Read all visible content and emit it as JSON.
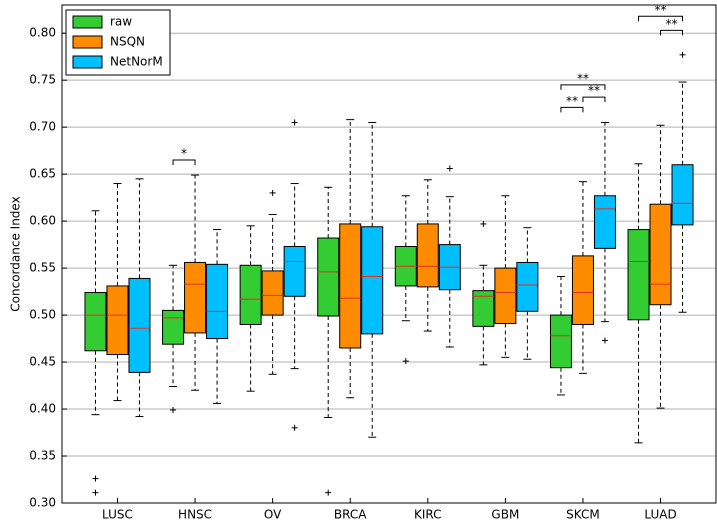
{
  "chart_data": {
    "type": "box",
    "ylabel": "Concordance Index",
    "categories": [
      "LUSC",
      "HNSC",
      "OV",
      "BRCA",
      "KIRC",
      "GBM",
      "SKCM",
      "LUAD"
    ],
    "ylim": [
      0.3,
      0.83
    ],
    "yticks": [
      {
        "value": 0.3,
        "label": "0.30"
      },
      {
        "value": 0.35,
        "label": "0.35"
      },
      {
        "value": 0.4,
        "label": "0.40"
      },
      {
        "value": 0.45,
        "label": "0.45"
      },
      {
        "value": 0.5,
        "label": "0.50"
      },
      {
        "value": 0.55,
        "label": "0.55"
      },
      {
        "value": 0.6,
        "label": "0.60"
      },
      {
        "value": 0.65,
        "label": "0.65"
      },
      {
        "value": 0.7,
        "label": "0.70"
      },
      {
        "value": 0.75,
        "label": "0.75"
      },
      {
        "value": 0.8,
        "label": "0.80"
      }
    ],
    "grid": true,
    "legend": "upper left",
    "median_color": "#e03020",
    "series": [
      {
        "name": "raw",
        "color": "#33cc33",
        "whislo": [
          0.394,
          0.424,
          0.419,
          0.391,
          0.494,
          0.447,
          0.415,
          0.364
        ],
        "q1": [
          0.462,
          0.469,
          0.49,
          0.499,
          0.531,
          0.488,
          0.444,
          0.495
        ],
        "median": [
          0.5,
          0.497,
          0.517,
          0.546,
          0.552,
          0.52,
          0.478,
          0.557
        ],
        "q3": [
          0.524,
          0.505,
          0.553,
          0.582,
          0.573,
          0.526,
          0.5,
          0.591
        ],
        "whishi": [
          0.611,
          0.553,
          0.595,
          0.636,
          0.627,
          0.553,
          0.541,
          0.661
        ],
        "fliers": [
          [
            0.326,
            0.311
          ],
          [
            0.399
          ],
          [],
          [
            0.311
          ],
          [
            0.451
          ],
          [
            0.597
          ],
          [],
          []
        ]
      },
      {
        "name": "NSQN",
        "color": "#ff8c00",
        "whislo": [
          0.409,
          0.42,
          0.437,
          0.412,
          0.483,
          0.455,
          0.438,
          0.401
        ],
        "q1": [
          0.458,
          0.481,
          0.5,
          0.465,
          0.53,
          0.491,
          0.49,
          0.511
        ],
        "median": [
          0.5,
          0.533,
          0.521,
          0.518,
          0.552,
          0.524,
          0.524,
          0.533
        ],
        "q3": [
          0.531,
          0.556,
          0.547,
          0.597,
          0.597,
          0.55,
          0.563,
          0.618
        ],
        "whishi": [
          0.64,
          0.649,
          0.607,
          0.708,
          0.644,
          0.627,
          0.642,
          0.702
        ],
        "fliers": [
          [],
          [],
          [
            0.63
          ],
          [],
          [],
          [],
          [],
          []
        ]
      },
      {
        "name": "NetNorM",
        "color": "#00bfff",
        "whislo": [
          0.392,
          0.406,
          0.443,
          0.37,
          0.466,
          0.453,
          0.493,
          0.503
        ],
        "q1": [
          0.439,
          0.475,
          0.52,
          0.48,
          0.527,
          0.504,
          0.571,
          0.596
        ],
        "median": [
          0.486,
          0.504,
          0.557,
          0.541,
          0.551,
          0.532,
          0.613,
          0.619
        ],
        "q3": [
          0.539,
          0.554,
          0.573,
          0.594,
          0.575,
          0.556,
          0.627,
          0.66
        ],
        "whishi": [
          0.645,
          0.591,
          0.64,
          0.705,
          0.626,
          0.593,
          0.705,
          0.748
        ],
        "fliers": [
          [],
          [],
          [
            0.705,
            0.38
          ],
          [],
          [
            0.656
          ],
          [],
          [
            0.473
          ],
          [
            0.777
          ]
        ]
      }
    ],
    "annotations": [
      {
        "label": "*",
        "category": "HNSC",
        "between": [
          "raw",
          "NSQN"
        ],
        "y": 0.665
      },
      {
        "label": "**",
        "category": "SKCM",
        "between": [
          "raw",
          "NSQN"
        ],
        "y": 0.721
      },
      {
        "label": "**",
        "category": "SKCM",
        "between": [
          "NSQN",
          "NetNorM"
        ],
        "y": 0.732
      },
      {
        "label": "**",
        "category": "SKCM",
        "between": [
          "raw",
          "NetNorM"
        ],
        "y": 0.745
      },
      {
        "label": "**",
        "category": "LUAD",
        "between": [
          "NSQN",
          "NetNorM"
        ],
        "y": 0.803
      },
      {
        "label": "**",
        "category": "LUAD",
        "between": [
          "raw",
          "NetNorM"
        ],
        "y": 0.818
      }
    ]
  }
}
